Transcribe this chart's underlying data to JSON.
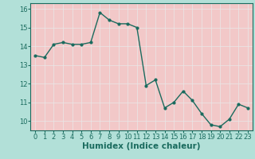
{
  "x": [
    0,
    1,
    2,
    3,
    4,
    5,
    6,
    7,
    8,
    9,
    10,
    11,
    12,
    13,
    14,
    15,
    16,
    17,
    18,
    19,
    20,
    21,
    22,
    23
  ],
  "y": [
    13.5,
    13.4,
    14.1,
    14.2,
    14.1,
    14.1,
    14.2,
    15.8,
    15.4,
    15.2,
    15.2,
    15.0,
    11.9,
    12.2,
    10.7,
    11.0,
    11.6,
    11.1,
    10.4,
    9.8,
    9.7,
    10.1,
    10.9,
    10.7
  ],
  "line_color": "#1a6b5e",
  "marker": "o",
  "markersize": 2.0,
  "linewidth": 1.0,
  "xlabel": "Humidex (Indice chaleur)",
  "xlabel_fontsize": 7.5,
  "ylim": [
    9.5,
    16.3
  ],
  "xlim": [
    -0.5,
    23.5
  ],
  "yticks": [
    10,
    11,
    12,
    13,
    14,
    15,
    16
  ],
  "xticks": [
    0,
    1,
    2,
    3,
    4,
    5,
    6,
    7,
    8,
    9,
    10,
    11,
    12,
    13,
    14,
    15,
    16,
    17,
    18,
    19,
    20,
    21,
    22,
    23
  ],
  "tick_fontsize": 6.0,
  "bg_color": "#b2e0d8",
  "plot_bg_color": "#f2c8c8",
  "grid_color": "#e8e8e8",
  "grid_linewidth": 0.5
}
